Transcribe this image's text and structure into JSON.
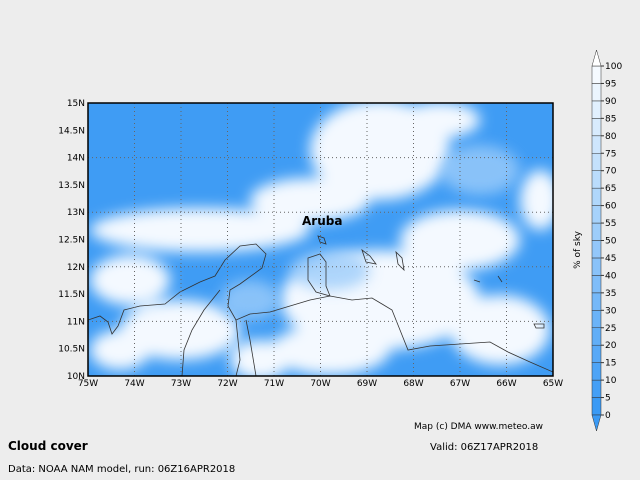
{
  "map": {
    "title": "Cloud cover",
    "source": "Data: NOAA NAM model, run: 06Z16APR2018",
    "valid": "Valid: 06Z17APR2018",
    "credit": "Map (c) DMA www.meteo.aw",
    "place": "Aruba",
    "lat_labels": [
      "10N",
      "10.5N",
      "11N",
      "11.5N",
      "12N",
      "12.5N",
      "13N",
      "13.5N",
      "14N",
      "14.5N",
      "15N"
    ],
    "lon_labels": [
      "75W",
      "74W",
      "73W",
      "72W",
      "71W",
      "70W",
      "69W",
      "68W",
      "67W",
      "66W",
      "65W"
    ]
  },
  "colorbar": {
    "label": "% of sky",
    "ticks": [
      0,
      5,
      10,
      15,
      20,
      25,
      30,
      35,
      40,
      45,
      50,
      55,
      60,
      65,
      70,
      75,
      80,
      85,
      90,
      95,
      100
    ]
  }
}
